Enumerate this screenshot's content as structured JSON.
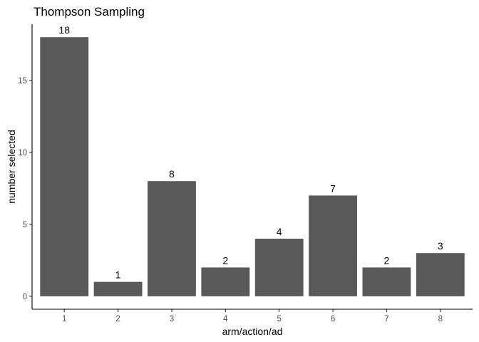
{
  "chart_data": {
    "type": "bar",
    "title": "Thompson Sampling",
    "xlabel": "arm/action/ad",
    "ylabel": "number selected",
    "categories": [
      "1",
      "2",
      "3",
      "4",
      "5",
      "6",
      "7",
      "8"
    ],
    "values": [
      18,
      1,
      8,
      2,
      4,
      7,
      2,
      3
    ],
    "data_labels": [
      "18",
      "1",
      "8",
      "2",
      "4",
      "7",
      "2",
      "3"
    ],
    "yticks": [
      0,
      5,
      10,
      15
    ],
    "ytick_labels": [
      "0",
      "5",
      "10",
      "15"
    ],
    "ylim": [
      -0.9,
      18.9
    ],
    "grid": false,
    "bar_color": "#595959"
  }
}
